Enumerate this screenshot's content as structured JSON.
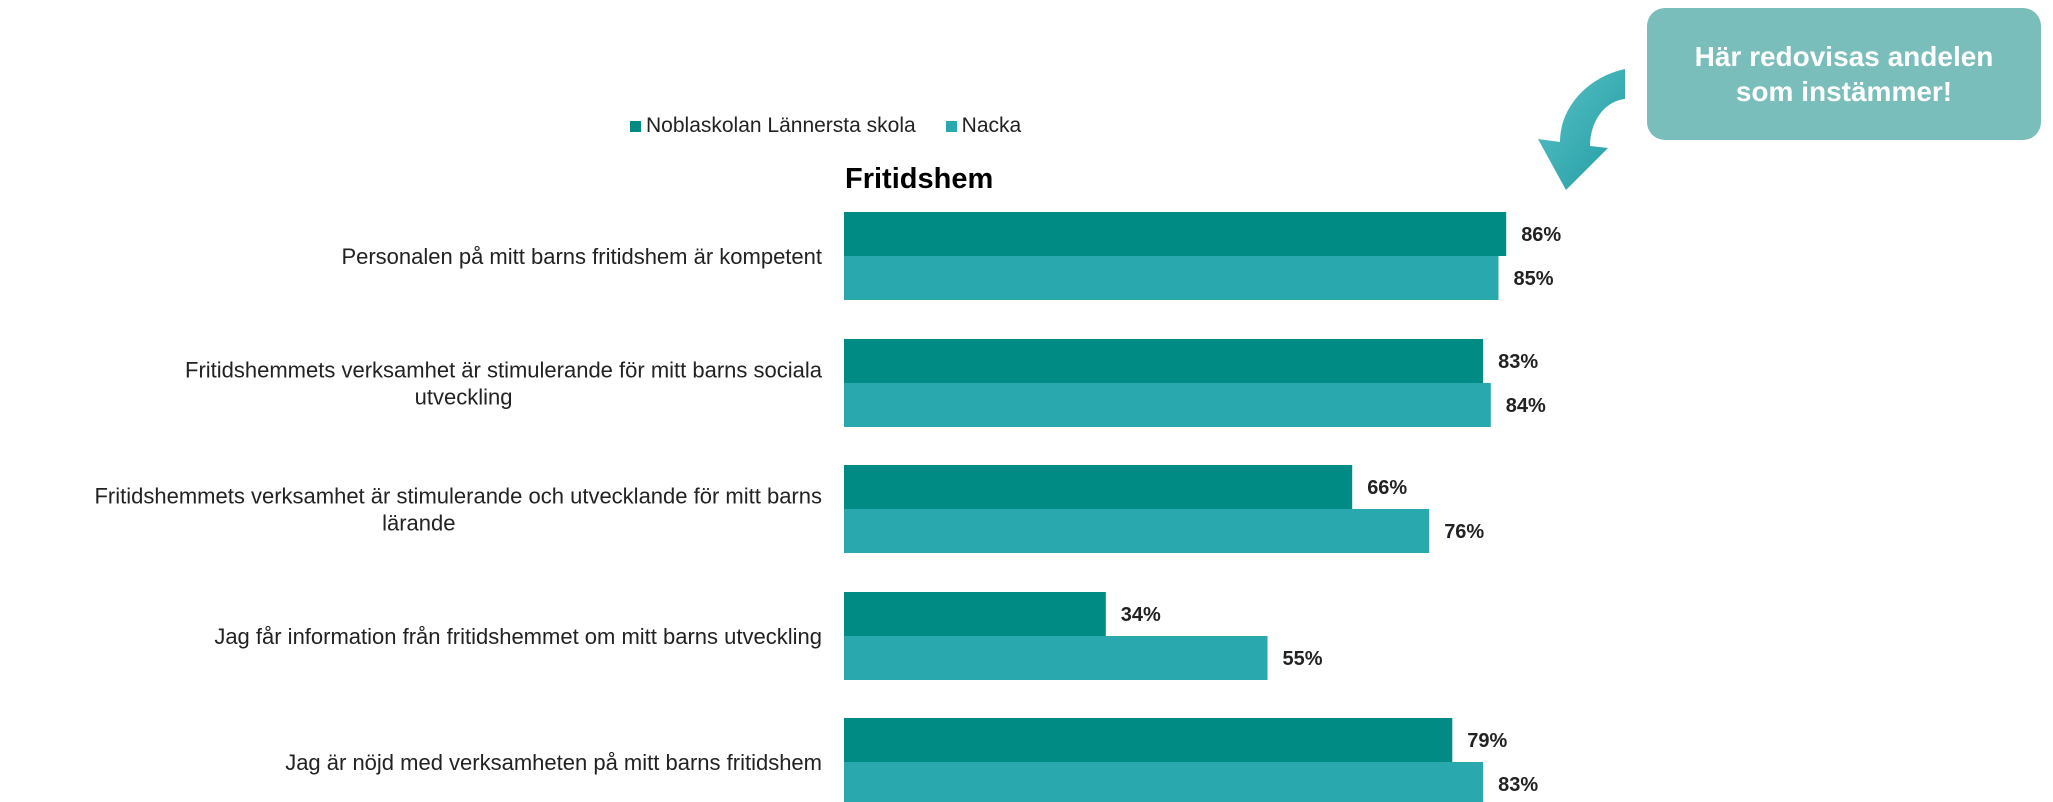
{
  "chart_data": {
    "type": "bar",
    "orientation": "horizontal",
    "title": "Fritidshem",
    "categories": [
      "Personalen på mitt barns fritidshem är kompetent",
      "Fritidshemmets verksamhet är stimulerande för mitt barns sociala utveckling",
      "Fritidshemmets verksamhet är stimulerande och utvecklande för mitt barns lärande",
      "Jag får information från fritidshemmet om mitt barns utveckling",
      "Jag är nöjd med verksamheten på mitt barns fritidshem"
    ],
    "series": [
      {
        "name": "Noblaskolan Lännersta skola",
        "values": [
          86,
          83,
          66,
          34,
          79
        ],
        "color": "#008B84"
      },
      {
        "name": "Nacka",
        "values": [
          85,
          84,
          76,
          55,
          83
        ],
        "color": "#29A8AE"
      }
    ],
    "value_suffix": "%",
    "xlim": [
      0,
      100
    ],
    "grid": false,
    "legend_position": "top"
  },
  "callout": {
    "text": "Här redovisas andelen som instämmer!",
    "color": "#79BEBA"
  },
  "arrow": {
    "icon": "curved-arrow-down-icon",
    "color": "#3AAFB6"
  }
}
